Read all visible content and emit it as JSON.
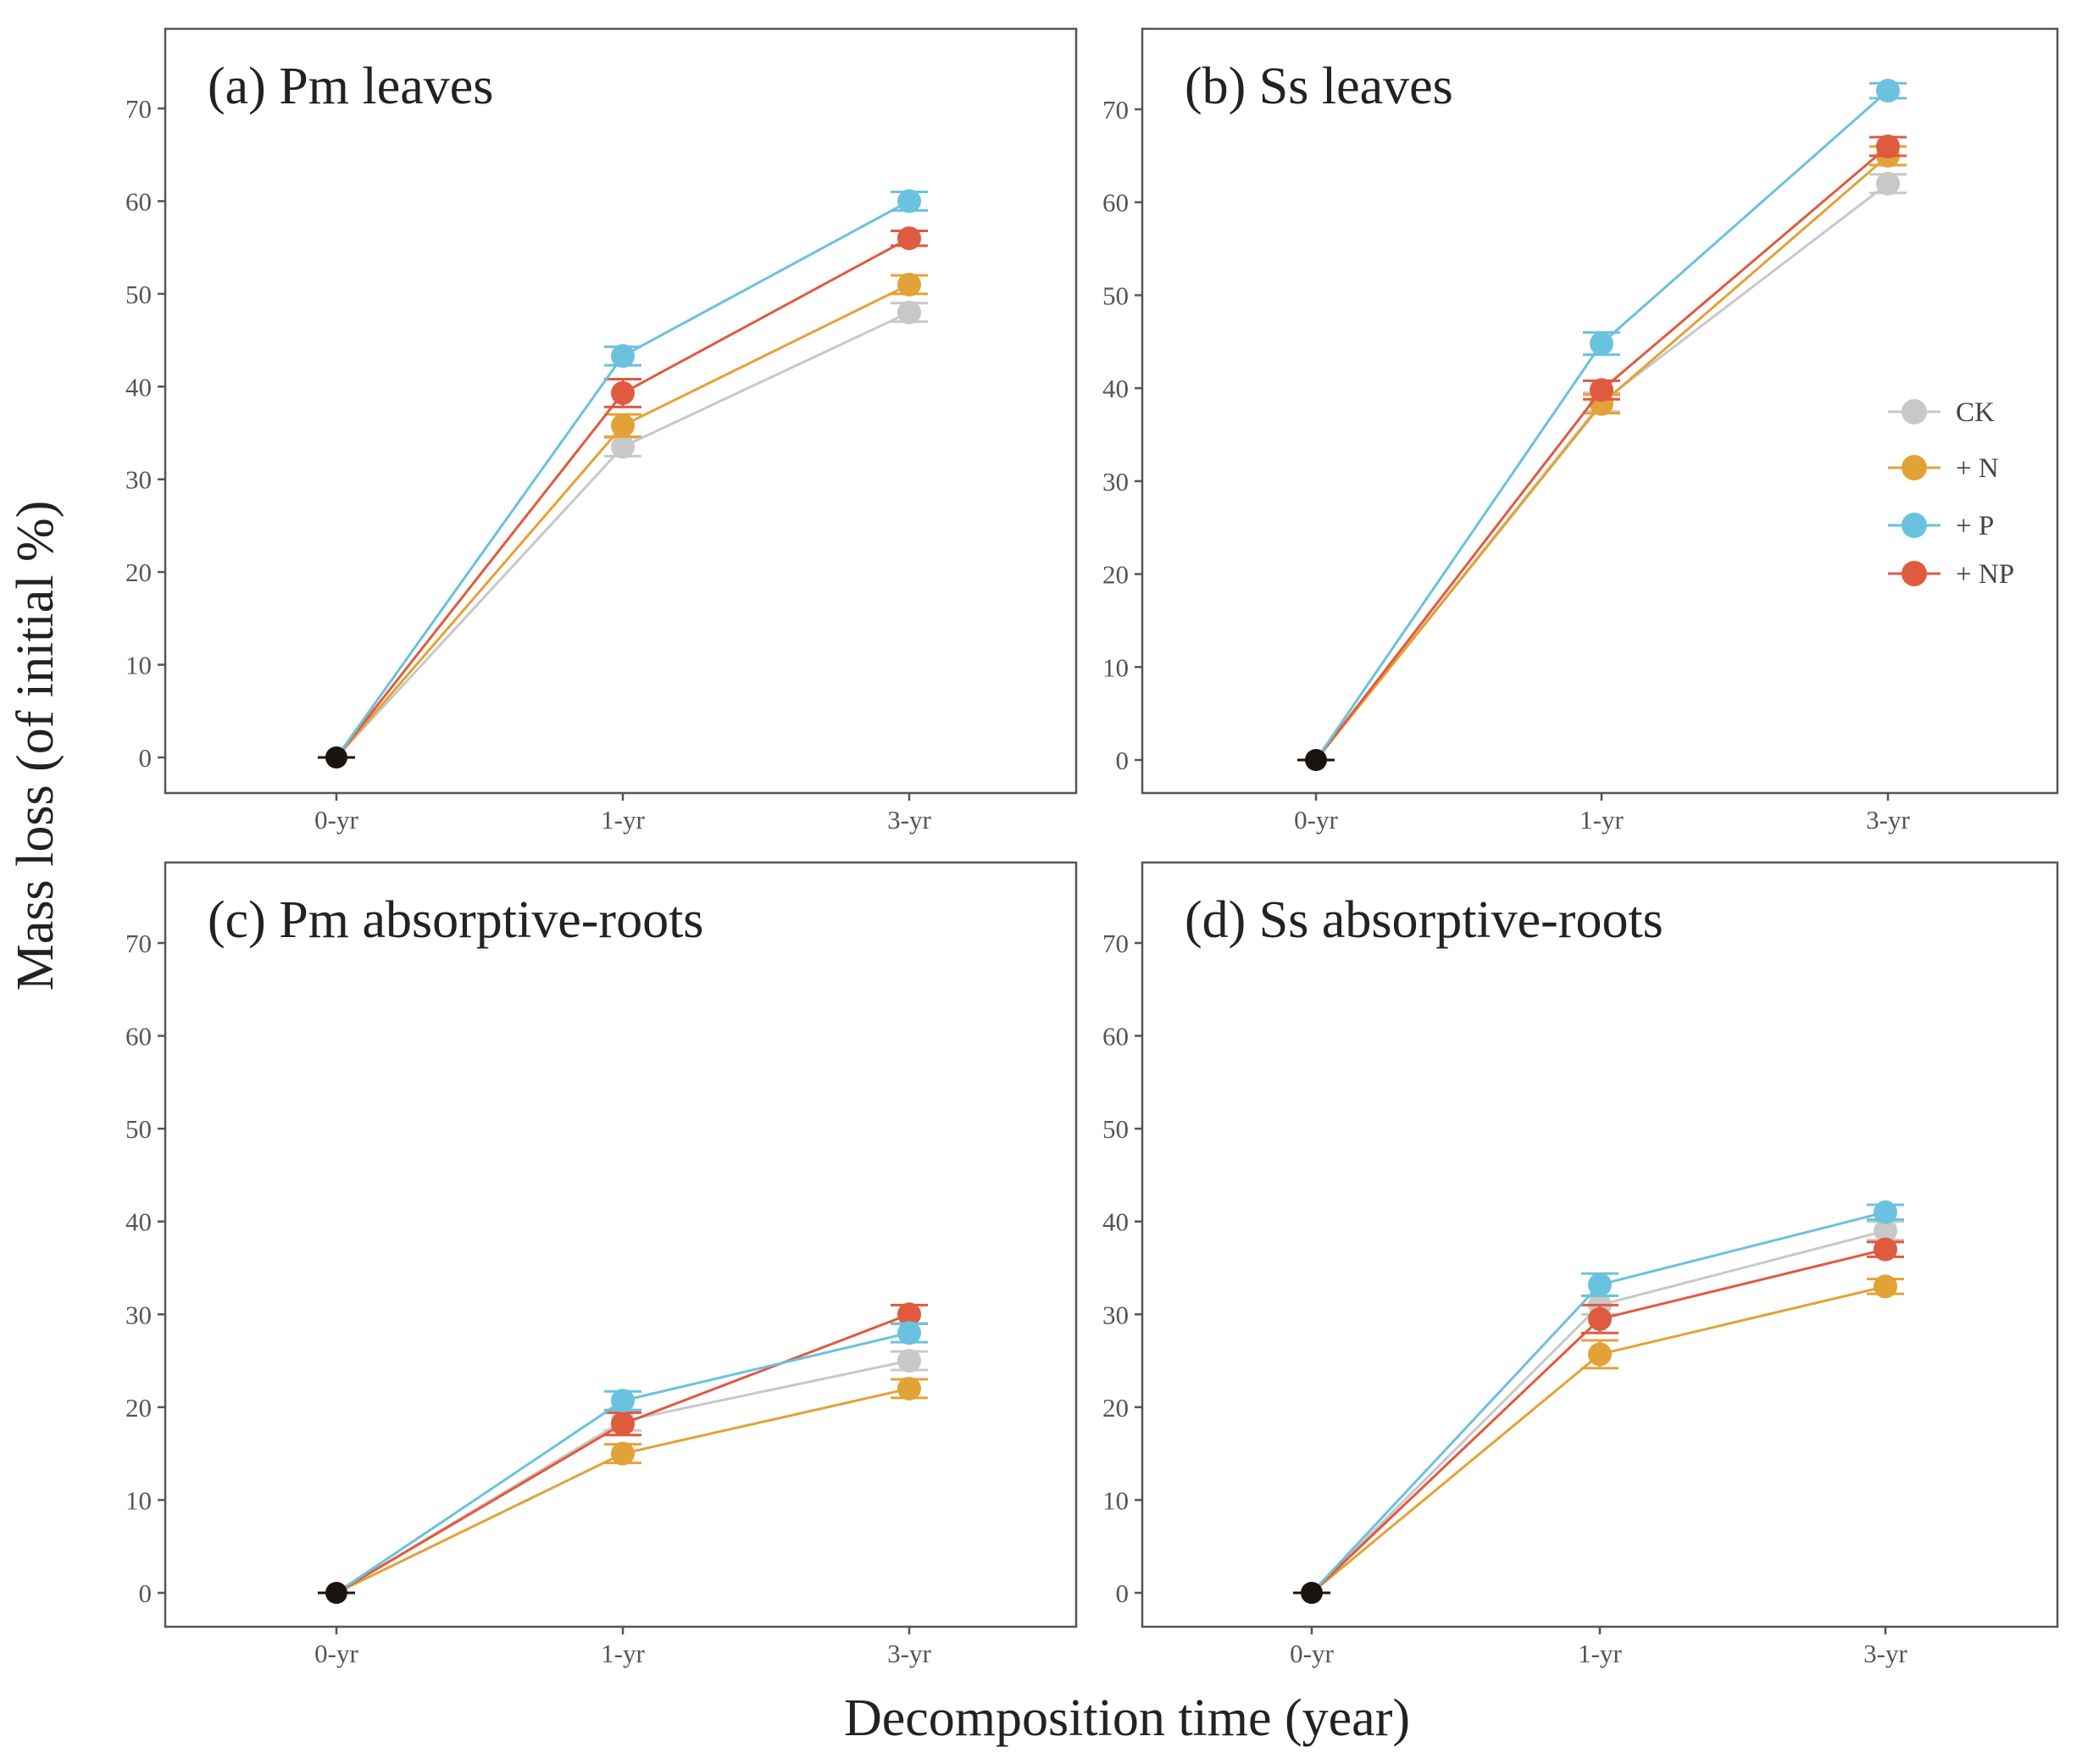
{
  "figure": {
    "ylabel": "Mass loss (of initial %)",
    "xlabel": "Decomposition time (year)"
  },
  "legend": {
    "items": [
      {
        "label": "CK",
        "color": "#c8c8c8"
      },
      {
        "label": "+ N",
        "color": "#e3a237"
      },
      {
        "label": "+ P",
        "color": "#6ac2de"
      },
      {
        "label": "+ NP",
        "color": "#e05a40"
      }
    ]
  },
  "colors": {
    "CK": "#c8c8c8",
    "+N": "#e3a237",
    "+P": "#6ac2de",
    "+NP": "#e05a40",
    "origin": "#1a1410"
  },
  "chart_data": [
    {
      "type": "line",
      "title": "(a) Pm leaves",
      "categories": [
        "0-yr",
        "1-yr",
        "3-yr"
      ],
      "ylim": [
        -4,
        78
      ],
      "yticks": [
        0,
        10,
        20,
        30,
        40,
        50,
        60,
        70
      ],
      "series": [
        {
          "name": "CK",
          "values": [
            0,
            33.5,
            48
          ],
          "errors": [
            0,
            1.0,
            1.0
          ]
        },
        {
          "name": "+ N",
          "values": [
            0,
            35.8,
            51
          ],
          "errors": [
            0,
            1.2,
            1.0
          ]
        },
        {
          "name": "+ P",
          "values": [
            0,
            43.3,
            60
          ],
          "errors": [
            0,
            1.0,
            1.0
          ]
        },
        {
          "name": "+ NP",
          "values": [
            0,
            39.3,
            56
          ],
          "errors": [
            0,
            1.5,
            0.8
          ]
        }
      ]
    },
    {
      "type": "line",
      "title": "(b) Ss leaves",
      "categories": [
        "0-yr",
        "1-yr",
        "3-yr"
      ],
      "ylim": [
        -4,
        78
      ],
      "yticks": [
        0,
        10,
        20,
        30,
        40,
        50,
        60,
        70
      ],
      "series": [
        {
          "name": "CK",
          "values": [
            0,
            38.5,
            62
          ],
          "errors": [
            0,
            1.0,
            1.0
          ]
        },
        {
          "name": "+ N",
          "values": [
            0,
            38.3,
            65
          ],
          "errors": [
            0,
            1.0,
            1.0
          ]
        },
        {
          "name": "+ P",
          "values": [
            0,
            44.8,
            72
          ],
          "errors": [
            0,
            1.2,
            0.8
          ]
        },
        {
          "name": "+ NP",
          "values": [
            0,
            39.8,
            66
          ],
          "errors": [
            0,
            1.0,
            1.0
          ]
        }
      ]
    },
    {
      "type": "line",
      "title": "(c) Pm absorptive-roots",
      "categories": [
        "0-yr",
        "1-yr",
        "3-yr"
      ],
      "ylim": [
        -4,
        78
      ],
      "yticks": [
        0,
        10,
        20,
        30,
        40,
        50,
        60,
        70
      ],
      "series": [
        {
          "name": "CK",
          "values": [
            0,
            18.5,
            25
          ],
          "errors": [
            0,
            1.0,
            1.0
          ]
        },
        {
          "name": "+ N",
          "values": [
            0,
            15,
            22
          ],
          "errors": [
            0,
            1.0,
            1.0
          ]
        },
        {
          "name": "+ P",
          "values": [
            0,
            20.7,
            28
          ],
          "errors": [
            0,
            1.0,
            1.0
          ]
        },
        {
          "name": "+ NP",
          "values": [
            0,
            18.2,
            30
          ],
          "errors": [
            0,
            1.2,
            1.0
          ]
        }
      ]
    },
    {
      "type": "line",
      "title": "(d) Ss absorptive-roots",
      "categories": [
        "0-yr",
        "1-yr",
        "3-yr"
      ],
      "ylim": [
        -4,
        78
      ],
      "yticks": [
        0,
        10,
        20,
        30,
        40,
        50,
        60,
        70
      ],
      "series": [
        {
          "name": "CK",
          "values": [
            0,
            31,
            39
          ],
          "errors": [
            0,
            1.0,
            1.0
          ]
        },
        {
          "name": "+ N",
          "values": [
            0,
            25.7,
            33
          ],
          "errors": [
            0,
            1.5,
            0.8
          ]
        },
        {
          "name": "+ P",
          "values": [
            0,
            33.2,
            41
          ],
          "errors": [
            0,
            1.2,
            0.8
          ]
        },
        {
          "name": "+ NP",
          "values": [
            0,
            29.5,
            37
          ],
          "errors": [
            0,
            1.5,
            0.8
          ]
        }
      ]
    }
  ]
}
